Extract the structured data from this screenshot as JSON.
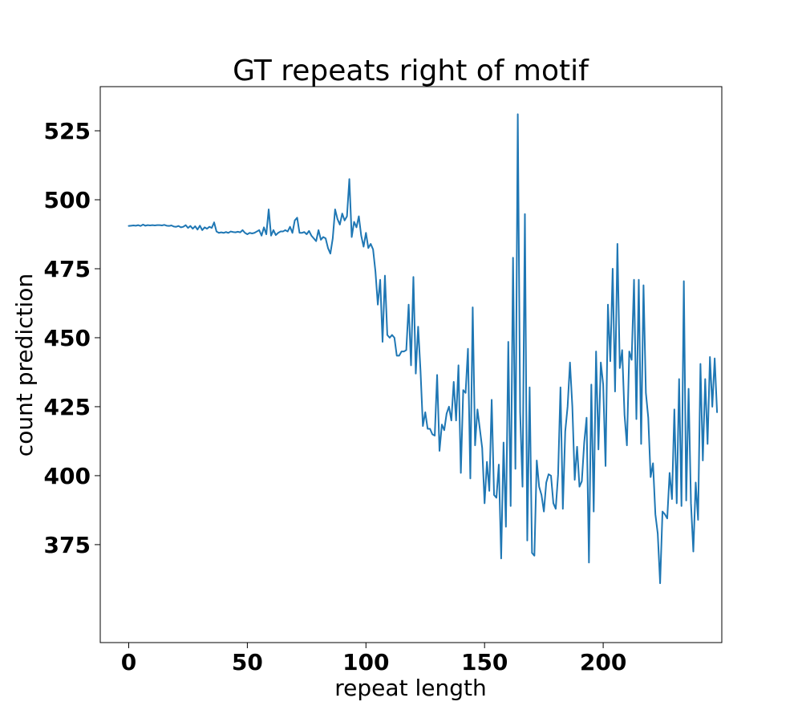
{
  "chart_data": {
    "type": "line",
    "title": "GT repeats right of motif",
    "xlabel": "repeat length",
    "ylabel": "count prediction",
    "xlim": [
      -12,
      250
    ],
    "ylim": [
      339.5,
      541
    ],
    "xticks": [
      0,
      50,
      100,
      150,
      200
    ],
    "yticks": [
      375,
      400,
      425,
      450,
      475,
      500,
      525
    ],
    "grid": false,
    "legend": "none",
    "series": [
      {
        "color": "#1f77b4",
        "x_start": 0,
        "x_step": 1,
        "values": [
          490.5,
          490.6,
          490.7,
          490.6,
          490.8,
          490.5,
          491.0,
          490.6,
          490.8,
          490.7,
          490.8,
          490.7,
          490.8,
          490.8,
          490.7,
          490.9,
          490.6,
          490.5,
          490.7,
          490.3,
          490.2,
          490.5,
          490.0,
          490.2,
          490.8,
          489.8,
          490.5,
          489.5,
          490.4,
          489.2,
          490.6,
          489.0,
          490.0,
          489.5,
          490.2,
          489.8,
          491.8,
          488.5,
          488.0,
          488.2,
          488.0,
          488.3,
          488.0,
          488.5,
          488.3,
          488.2,
          488.4,
          488.2,
          489.0,
          488.0,
          487.5,
          488.0,
          487.8,
          488.0,
          488.5,
          489.0,
          487.0,
          490.0,
          487.5,
          496.5,
          487.0,
          489.0,
          487.2,
          488.0,
          488.5,
          488.5,
          489.0,
          488.5,
          490.2,
          488.0,
          492.5,
          493.5,
          488.0,
          488.0,
          488.3,
          487.5,
          488.7,
          487.0,
          486.0,
          485.0,
          489.0,
          485.5,
          486.5,
          486.0,
          482.5,
          480.5,
          486.0,
          496.5,
          493.0,
          491.0,
          495.0,
          492.5,
          494.0,
          507.5,
          486.5,
          492.0,
          490.0,
          494.0,
          487.0,
          483.0,
          488.0,
          482.5,
          484.0,
          482.0,
          474.0,
          462.0,
          471.0,
          448.5,
          472.5,
          451.0,
          450.0,
          451.0,
          450.0,
          443.5,
          443.5,
          445.0,
          445.0,
          445.5,
          462.0,
          440.0,
          472.0,
          437.0,
          454.0,
          438.0,
          418.0,
          423.0,
          417.0,
          417.0,
          415.0,
          414.5,
          436.5,
          409.0,
          418.5,
          416.5,
          422.5,
          425.0,
          420.0,
          434.0,
          420.0,
          440.0,
          401.0,
          431.0,
          430.0,
          446.0,
          399.0,
          461.0,
          411.0,
          424.0,
          417.0,
          410.0,
          390.0,
          405.0,
          394.5,
          427.5,
          393.0,
          392.0,
          404.0,
          370.0,
          412.0,
          381.5,
          448.5,
          389.0,
          479.0,
          402.5,
          531.0,
          423.0,
          396.0,
          494.8,
          376.5,
          432.0,
          372.0,
          371.0,
          405.5,
          396.0,
          393.0,
          387.0,
          397.5,
          400.5,
          400.0,
          390.0,
          388.0,
          400.5,
          432.0,
          388.0,
          416.0,
          425.0,
          441.0,
          425.0,
          398.5,
          410.5,
          396.0,
          398.0,
          412.0,
          421.0,
          368.5,
          433.0,
          387.0,
          445.0,
          409.5,
          441.0,
          433.0,
          403.5,
          462.0,
          441.5,
          475.0,
          430.5,
          484.0,
          439.0,
          445.5,
          422.0,
          411.0,
          445.0,
          442.0,
          471.0,
          420.5,
          471.0,
          411.5,
          469.0,
          430.0,
          421.0,
          399.5,
          404.5,
          386.0,
          379.0,
          361.0,
          387.0,
          386.0,
          384.5,
          401.0,
          391.5,
          424.0,
          390.0,
          435.0,
          389.0,
          470.5,
          391.0,
          431.5,
          390.0,
          372.5,
          397.5,
          384.0,
          440.5,
          405.5,
          435.0,
          411.5,
          443.0,
          425.0,
          442.5,
          423.0
        ]
      }
    ]
  }
}
